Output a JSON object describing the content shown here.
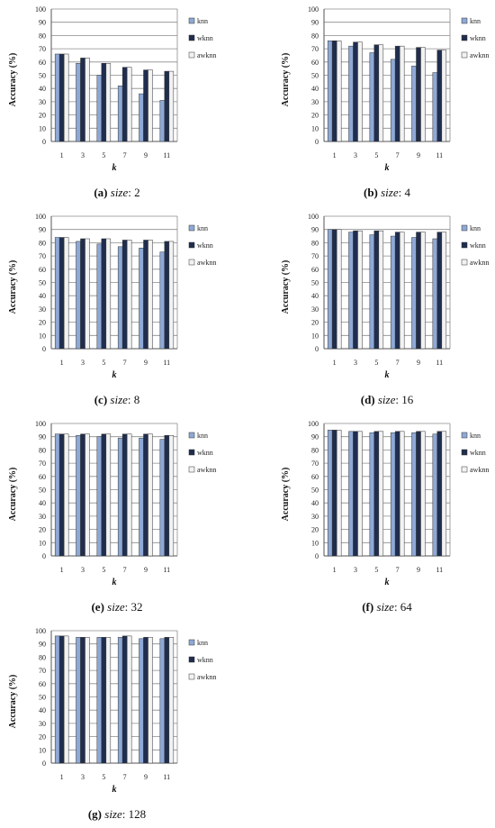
{
  "colors": {
    "knn": "#8ea9d6",
    "wknn": "#1f2d4f",
    "awknn": "#f2f2f2",
    "grid": "#8c8c8c",
    "axis": "#555555"
  },
  "legend": [
    "knn",
    "wknn",
    "awknn"
  ],
  "panels": [
    {
      "letter": "(a)",
      "size_label": "size",
      "size_value": ": 2",
      "chart_data": {
        "type": "bar",
        "title": "",
        "xlabel": "k",
        "ylabel": "Accuracy (%)",
        "categories": [
          "1",
          "3",
          "5",
          "7",
          "9",
          "11"
        ],
        "ylim": [
          0,
          100
        ],
        "yticks": [
          "0",
          "10",
          "20",
          "30",
          "40",
          "50",
          "60",
          "70",
          "80",
          "90",
          "100"
        ],
        "grid": true,
        "legend_position": "right",
        "series": [
          {
            "name": "knn",
            "values": [
              66,
              59,
              50,
              42,
              36,
              31
            ]
          },
          {
            "name": "wknn",
            "values": [
              66,
              63,
              59,
              56,
              54,
              53
            ]
          },
          {
            "name": "awknn",
            "values": [
              66,
              63,
              59,
              56,
              54,
              53
            ]
          }
        ]
      }
    },
    {
      "letter": "(b)",
      "size_label": "size",
      "size_value": ": 4",
      "chart_data": {
        "type": "bar",
        "title": "",
        "xlabel": "k",
        "ylabel": "Accuracy (%)",
        "categories": [
          "1",
          "3",
          "5",
          "7",
          "9",
          "11"
        ],
        "ylim": [
          0,
          100
        ],
        "yticks": [
          "0",
          "10",
          "20",
          "30",
          "40",
          "50",
          "60",
          "70",
          "80",
          "90",
          "100"
        ],
        "grid": true,
        "legend_position": "right",
        "series": [
          {
            "name": "knn",
            "values": [
              76,
              72,
              67,
              62,
              57,
              52
            ]
          },
          {
            "name": "wknn",
            "values": [
              76,
              75,
              73,
              72,
              71,
              69
            ]
          },
          {
            "name": "awknn",
            "values": [
              76,
              75,
              73,
              72,
              71,
              69
            ]
          }
        ]
      }
    },
    {
      "letter": "(c)",
      "size_label": "size",
      "size_value": ": 8",
      "chart_data": {
        "type": "bar",
        "title": "",
        "xlabel": "k",
        "ylabel": "Accuracy (%)",
        "categories": [
          "1",
          "3",
          "5",
          "7",
          "9",
          "11"
        ],
        "ylim": [
          0,
          100
        ],
        "yticks": [
          "0",
          "10",
          "20",
          "30",
          "40",
          "50",
          "60",
          "70",
          "80",
          "90",
          "100"
        ],
        "grid": true,
        "legend_position": "right",
        "series": [
          {
            "name": "knn",
            "values": [
              84,
              81,
              79,
              77,
              76,
              73
            ]
          },
          {
            "name": "wknn",
            "values": [
              84,
              83,
              83,
              82,
              82,
              81
            ]
          },
          {
            "name": "awknn",
            "values": [
              84,
              83,
              83,
              82,
              82,
              81
            ]
          }
        ]
      }
    },
    {
      "letter": "(d)",
      "size_label": "size",
      "size_value": ": 16",
      "chart_data": {
        "type": "bar",
        "title": "",
        "xlabel": "k",
        "ylabel": "Accuracy (%)",
        "categories": [
          "1",
          "3",
          "5",
          "7",
          "9",
          "11"
        ],
        "ylim": [
          0,
          100
        ],
        "yticks": [
          "0",
          "10",
          "20",
          "30",
          "40",
          "50",
          "60",
          "70",
          "80",
          "90",
          "100"
        ],
        "grid": true,
        "legend_position": "right",
        "series": [
          {
            "name": "knn",
            "values": [
              90,
              88,
              86,
              85,
              84,
              83
            ]
          },
          {
            "name": "wknn",
            "values": [
              90,
              89,
              89,
              88,
              88,
              88
            ]
          },
          {
            "name": "awknn",
            "values": [
              90,
              89,
              89,
              88,
              88,
              88
            ]
          }
        ]
      }
    },
    {
      "letter": "(e)",
      "size_label": "size",
      "size_value": ": 32",
      "chart_data": {
        "type": "bar",
        "title": "",
        "xlabel": "k",
        "ylabel": "Accuracy (%)",
        "categories": [
          "1",
          "3",
          "5",
          "7",
          "9",
          "11"
        ],
        "ylim": [
          0,
          100
        ],
        "yticks": [
          "0",
          "10",
          "20",
          "30",
          "40",
          "50",
          "60",
          "70",
          "80",
          "90",
          "100"
        ],
        "grid": true,
        "legend_position": "right",
        "series": [
          {
            "name": "knn",
            "values": [
              92,
              91,
              90,
              89,
              89,
              88
            ]
          },
          {
            "name": "wknn",
            "values": [
              92,
              92,
              92,
              92,
              92,
              91
            ]
          },
          {
            "name": "awknn",
            "values": [
              92,
              92,
              92,
              92,
              92,
              91
            ]
          }
        ]
      }
    },
    {
      "letter": "(f)",
      "size_label": "size",
      "size_value": ": 64",
      "chart_data": {
        "type": "bar",
        "title": "",
        "xlabel": "k",
        "ylabel": "Accuracy (%)",
        "categories": [
          "1",
          "3",
          "5",
          "7",
          "9",
          "11"
        ],
        "ylim": [
          0,
          100
        ],
        "yticks": [
          "0",
          "10",
          "20",
          "30",
          "40",
          "50",
          "60",
          "70",
          "80",
          "90",
          "100"
        ],
        "grid": true,
        "legend_position": "right",
        "series": [
          {
            "name": "knn",
            "values": [
              95,
              94,
              93,
              93,
              93,
              92
            ]
          },
          {
            "name": "wknn",
            "values": [
              95,
              94,
              94,
              94,
              94,
              94
            ]
          },
          {
            "name": "awknn",
            "values": [
              95,
              94,
              94,
              94,
              94,
              94
            ]
          }
        ]
      }
    },
    {
      "letter": "(g)",
      "size_label": "size",
      "size_value": ": 128",
      "chart_data": {
        "type": "bar",
        "title": "",
        "xlabel": "k",
        "ylabel": "Accuracy (%)",
        "categories": [
          "1",
          "3",
          "5",
          "7",
          "9",
          "11"
        ],
        "ylim": [
          0,
          100
        ],
        "yticks": [
          "0",
          "10",
          "20",
          "30",
          "40",
          "50",
          "60",
          "70",
          "80",
          "90",
          "100"
        ],
        "grid": true,
        "legend_position": "right",
        "series": [
          {
            "name": "knn",
            "values": [
              96,
              95,
              95,
              95,
              94,
              94
            ]
          },
          {
            "name": "wknn",
            "values": [
              96,
              95,
              95,
              96,
              95,
              95
            ]
          },
          {
            "name": "awknn",
            "values": [
              96,
              95,
              95,
              96,
              95,
              95
            ]
          }
        ]
      }
    }
  ]
}
